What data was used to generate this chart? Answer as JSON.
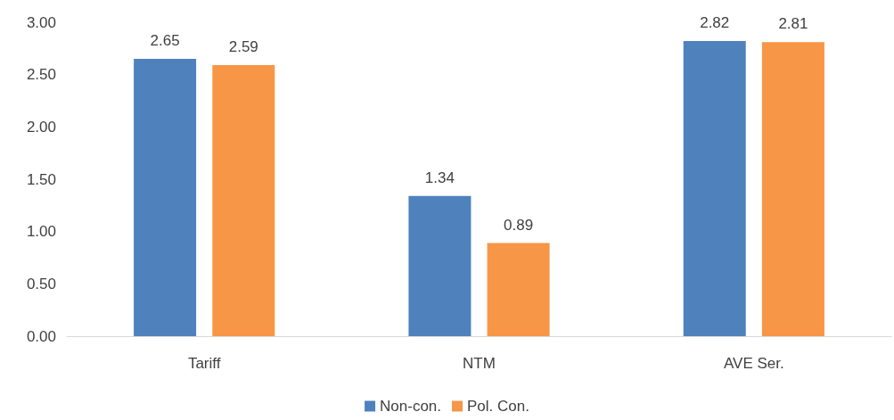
{
  "chart_data": {
    "type": "bar",
    "categories": [
      "Tariff",
      "NTM",
      "AVE Ser."
    ],
    "series": [
      {
        "name": "Non-con.",
        "color": "#4f81bd",
        "values": [
          2.65,
          1.34,
          2.82
        ]
      },
      {
        "name": "Pol. Con.",
        "color": "#f79646",
        "values": [
          2.59,
          0.89,
          2.81
        ]
      }
    ],
    "ylim": [
      0,
      3
    ],
    "yticks": [
      {
        "value": 0,
        "label": "0.00"
      },
      {
        "value": 0.5,
        "label": "0.50"
      },
      {
        "value": 1,
        "label": "1.00"
      },
      {
        "value": 1.5,
        "label": "1.50"
      },
      {
        "value": 2,
        "label": "2.00"
      },
      {
        "value": 2.5,
        "label": "2.50"
      },
      {
        "value": 3,
        "label": "3.00"
      }
    ],
    "data_labels": true,
    "grid": false,
    "legend": "bottom"
  }
}
